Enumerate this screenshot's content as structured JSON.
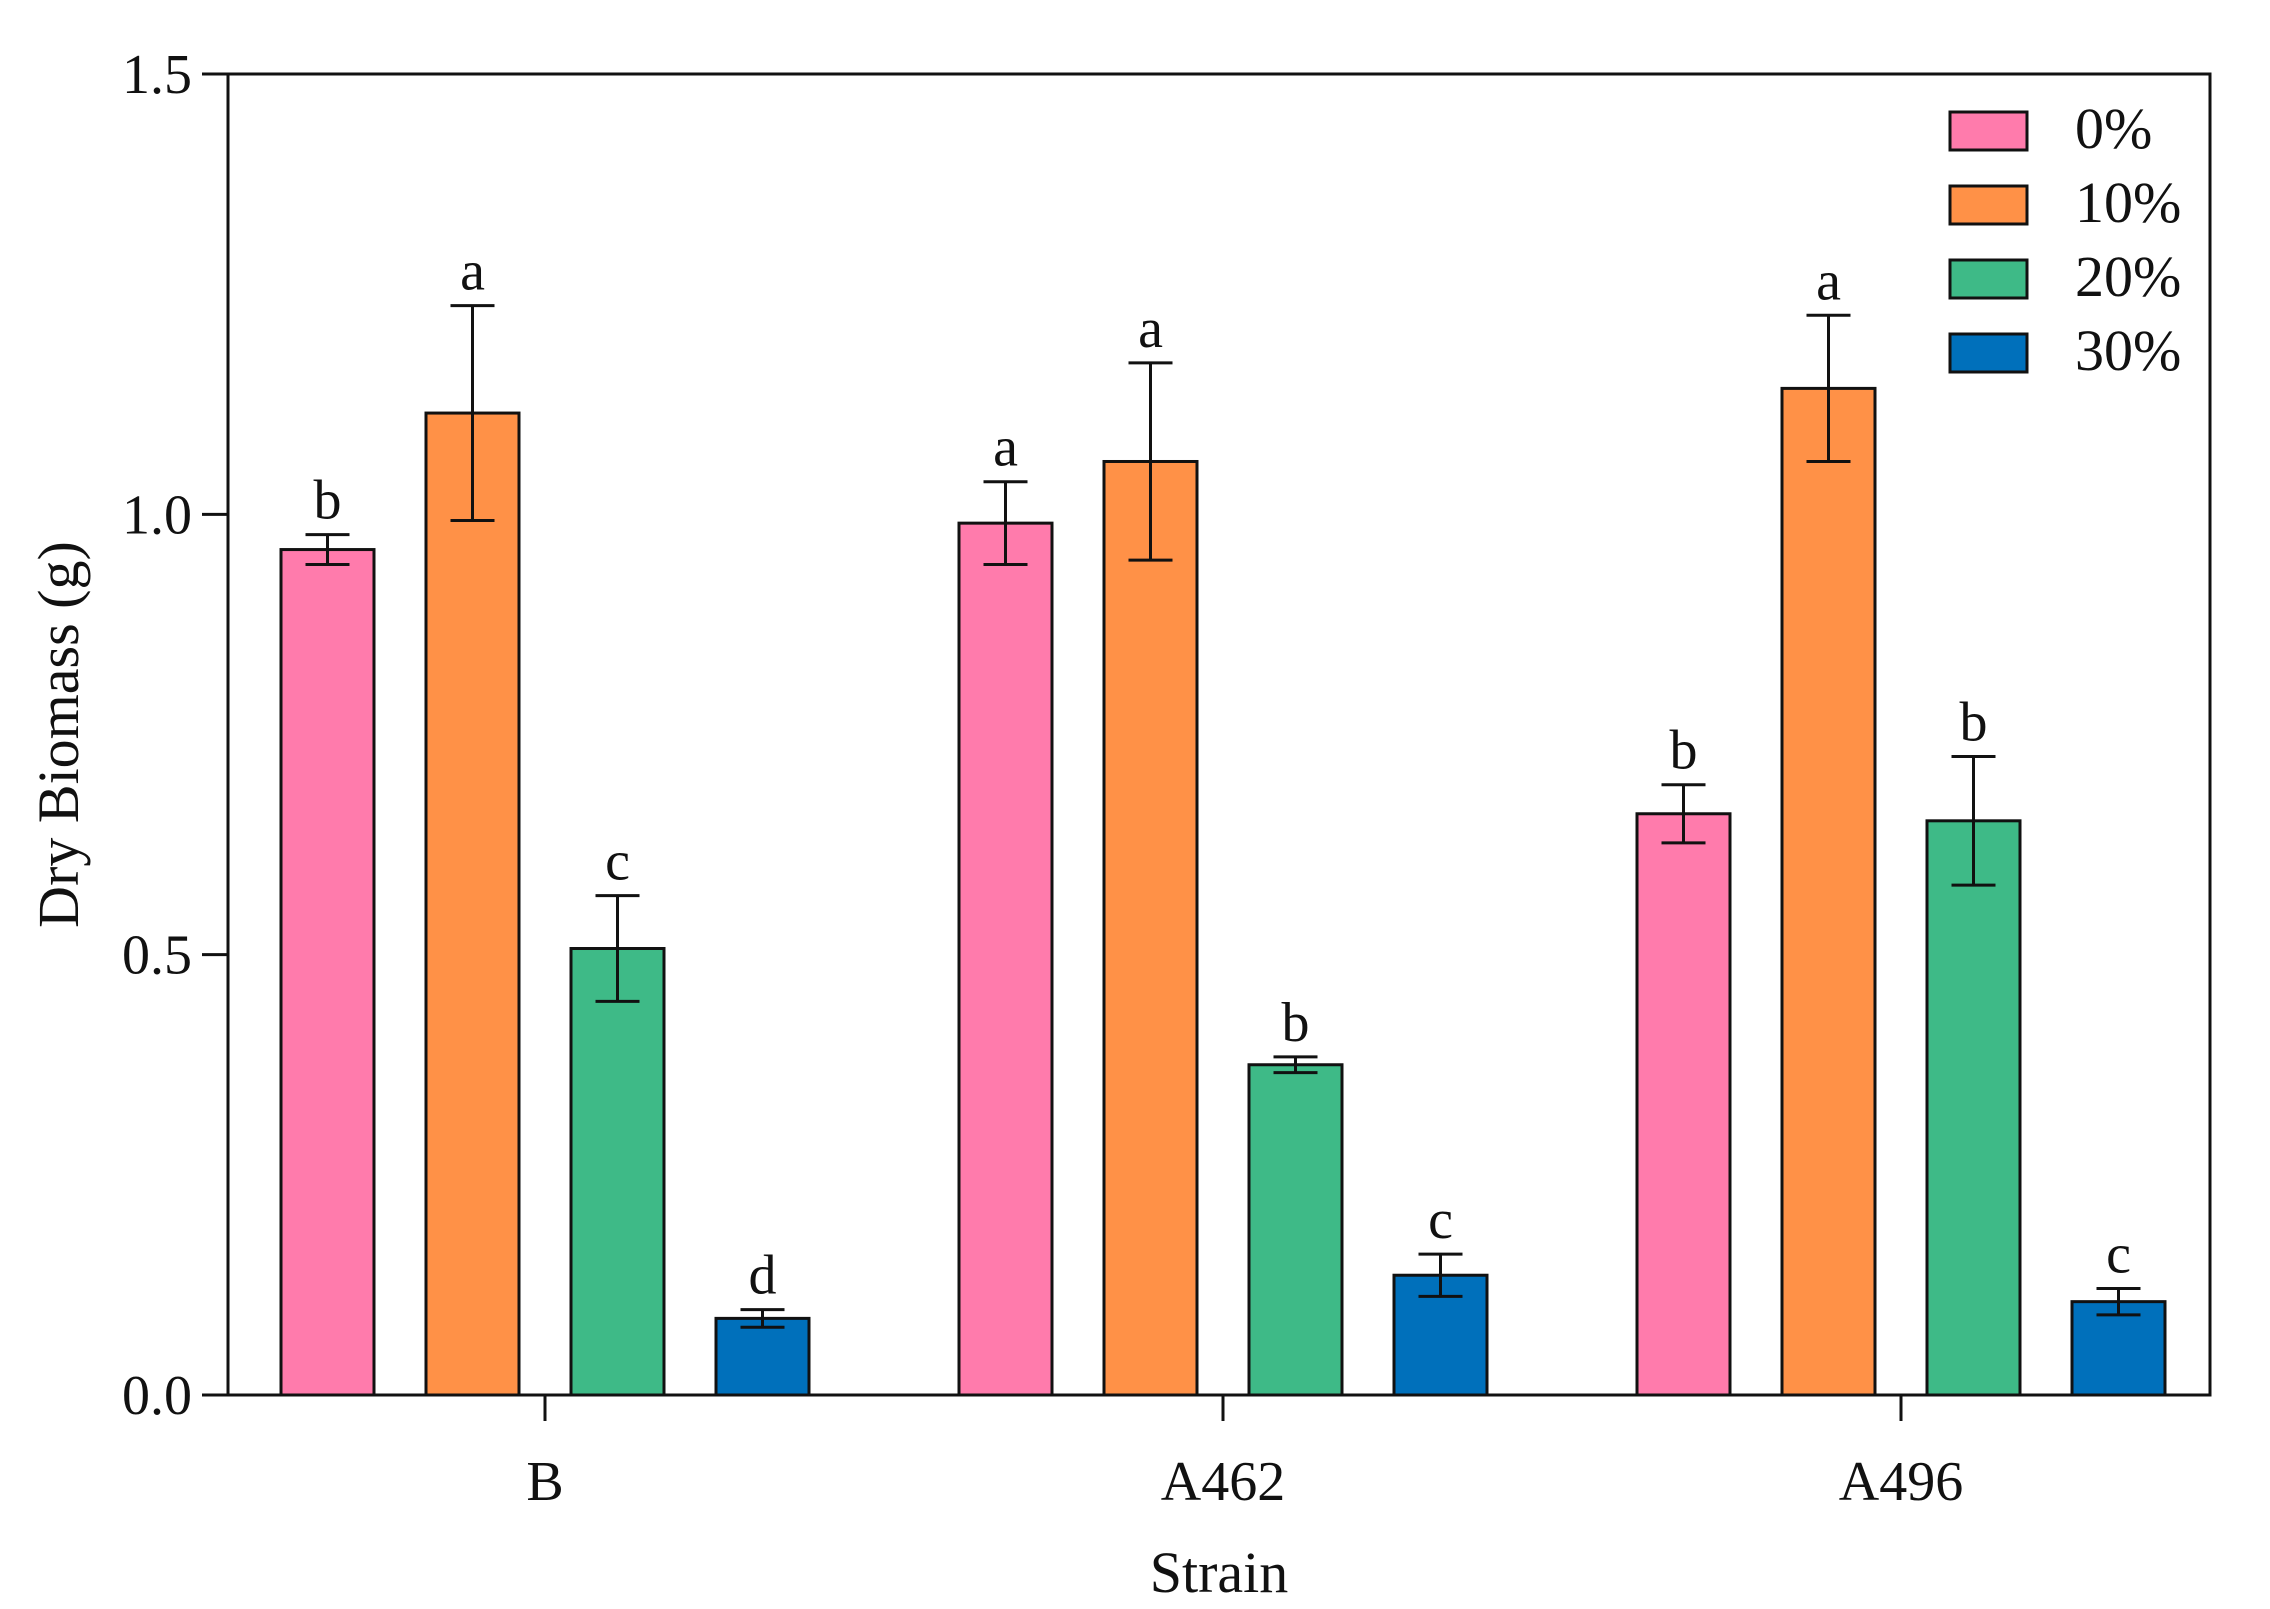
{
  "chart_data": {
    "type": "bar",
    "title": "",
    "xlabel": "Strain",
    "ylabel": "Dry Biomass (g)",
    "ylim": [
      0,
      1.5
    ],
    "yticks": [
      0.0,
      0.5,
      1.0,
      1.5
    ],
    "ytick_labels": [
      "0.0",
      "0.5",
      "1.0",
      "1.5"
    ],
    "categories": [
      "B",
      "A462",
      "A496"
    ],
    "legend_position": "top-right",
    "grid": false,
    "series": [
      {
        "name": "0%",
        "color": "#FF7BAC",
        "values": [
          0.96,
          0.99,
          0.66
        ],
        "errors": [
          0.017,
          0.047,
          0.033
        ],
        "significance": [
          "b",
          "a",
          "b"
        ]
      },
      {
        "name": "10%",
        "color": "#FF9147",
        "values": [
          1.115,
          1.06,
          1.143
        ],
        "errors": [
          0.122,
          0.112,
          0.083
        ],
        "significance": [
          "a",
          "a",
          "a"
        ]
      },
      {
        "name": "20%",
        "color": "#3EBA87",
        "values": [
          0.507,
          0.375,
          0.652
        ],
        "errors": [
          0.06,
          0.009,
          0.073
        ],
        "significance": [
          "c",
          "b",
          "b"
        ]
      },
      {
        "name": "30%",
        "color": "#0070BB",
        "values": [
          0.087,
          0.136,
          0.106
        ],
        "errors": [
          0.01,
          0.024,
          0.015
        ],
        "significance": [
          "d",
          "c",
          "c"
        ]
      }
    ]
  }
}
